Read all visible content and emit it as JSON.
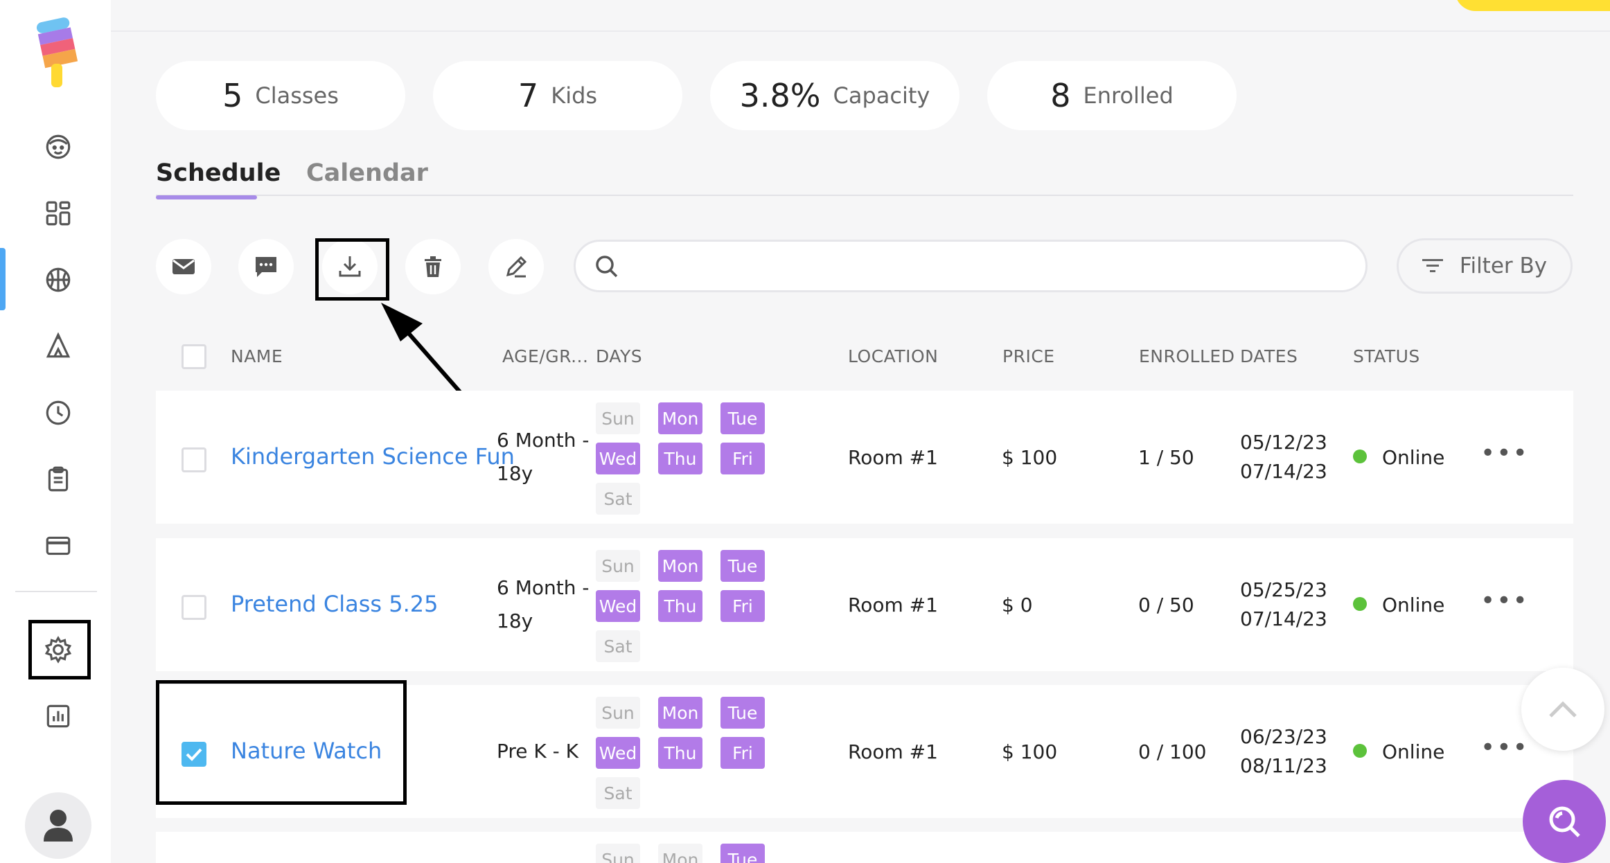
{
  "stats": [
    {
      "value": "5",
      "label": "Classes"
    },
    {
      "value": "7",
      "label": "Kids"
    },
    {
      "value": "3.8%",
      "label": "Capacity"
    },
    {
      "value": "8",
      "label": "Enrolled"
    }
  ],
  "tabs": {
    "schedule": "Schedule",
    "calendar": "Calendar"
  },
  "toolbar": {
    "icons": [
      "email-icon",
      "message-icon",
      "download-icon",
      "trash-icon",
      "edit-icon"
    ],
    "search_placeholder": "",
    "filter_label": "Filter By"
  },
  "table": {
    "headers": {
      "name": "NAME",
      "age": "AGE/GR...",
      "days": "DAYS",
      "location": "LOCATION",
      "price": "PRICE",
      "enrolled": "ENROLLED",
      "dates": "DATES",
      "status": "STATUS"
    },
    "day_labels": [
      "Sun",
      "Mon",
      "Tue",
      "Wed",
      "Thu",
      "Fri",
      "Sat"
    ],
    "rows": [
      {
        "name": "Kindergarten Science Fun",
        "age_line1": "6 Month -",
        "age_line2": "18y",
        "location": "Room #1",
        "price": "$ 100",
        "enrolled": "1 / 50",
        "date_start": "05/12/23",
        "date_end": "07/14/23",
        "status": "Online",
        "checked": false
      },
      {
        "name": "Pretend Class 5.25",
        "age_line1": "6 Month -",
        "age_line2": "18y",
        "location": "Room #1",
        "price": "$ 0",
        "enrolled": "0 / 50",
        "date_start": "05/25/23",
        "date_end": "07/14/23",
        "status": "Online",
        "checked": false
      },
      {
        "name": "Nature Watch",
        "age_line1": "Pre K - K",
        "age_line2": "",
        "location": "Room #1",
        "price": "$ 100",
        "enrolled": "0 / 100",
        "date_start": "06/23/23",
        "date_end": "08/11/23",
        "status": "Online",
        "checked": true
      }
    ],
    "partial_row_days": [
      "Sun",
      "Mon",
      "Tue"
    ]
  },
  "colors": {
    "accent_purple": "#b27be8",
    "link_blue": "#3a84e0",
    "status_online": "#5cc23b",
    "brand_yellow": "#ffe033"
  }
}
